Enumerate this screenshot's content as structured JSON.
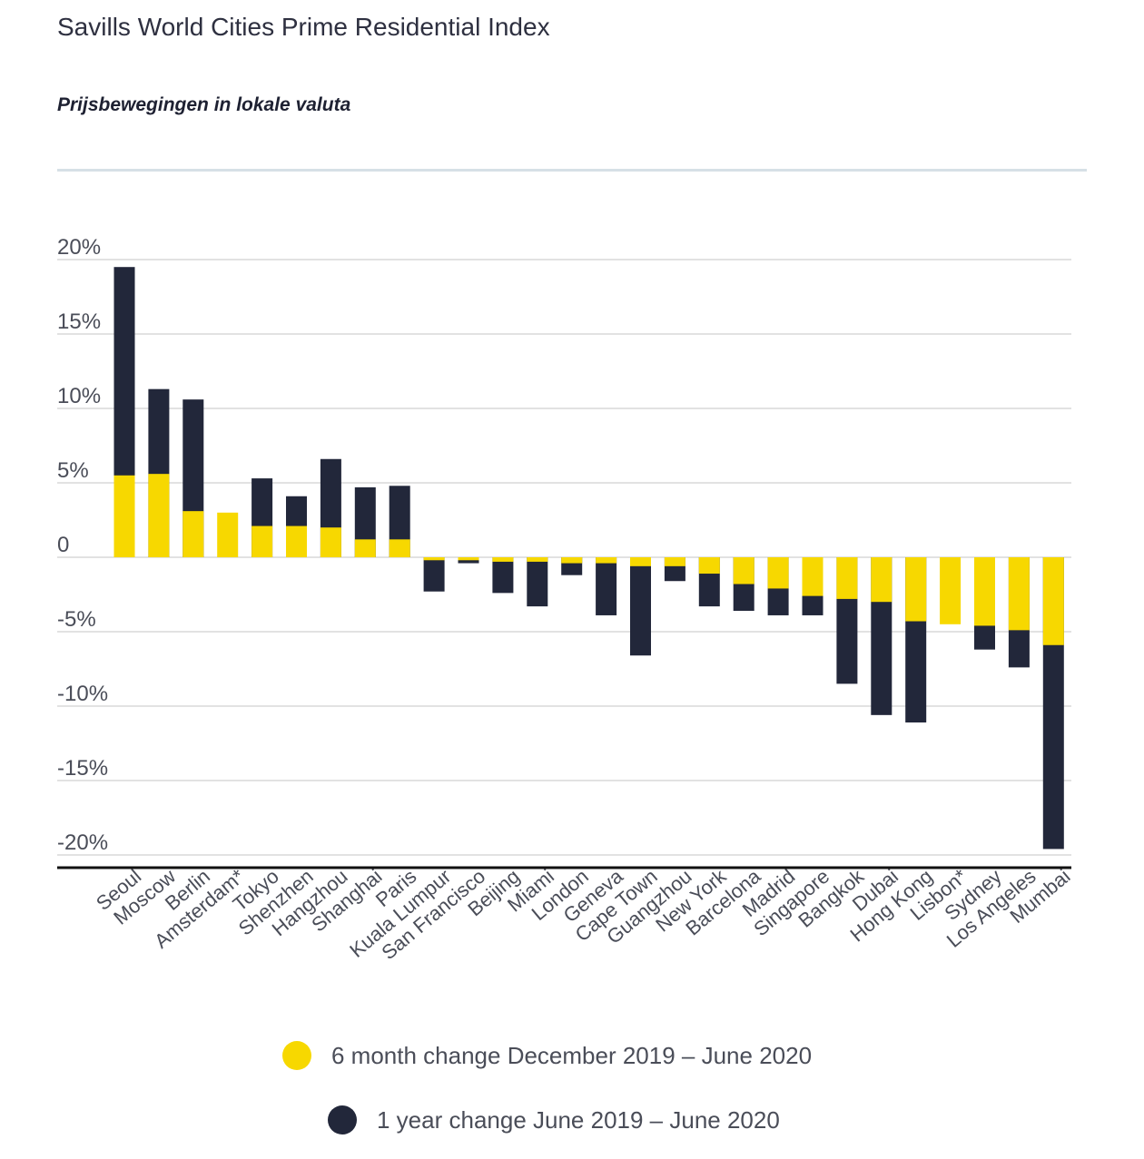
{
  "title": "Savills World Cities Prime Residential Index",
  "subtitle": "Prijsbewegingen in lokale valuta",
  "colors": {
    "six_month": "#f7d800",
    "one_year": "#22273a",
    "grid": "#d9d9d9",
    "axis": "#111111"
  },
  "chart_data": {
    "type": "bar",
    "ylim": [
      -20,
      20
    ],
    "yticks": [
      20,
      15,
      10,
      5,
      0,
      -5,
      -10,
      -15,
      -20
    ],
    "ytick_labels": [
      "20%",
      "15%",
      "10%",
      "5%",
      "0",
      "-5%",
      "-10%",
      "-15%",
      "-20%"
    ],
    "categories": [
      "Seoul",
      "Moscow",
      "Berlin",
      "Amsterdam*",
      "Tokyo",
      "Shenzhen",
      "Hangzhou",
      "Shanghai",
      "Paris",
      "Kuala Lumpur",
      "San Francisco",
      "Beijing",
      "Miami",
      "London",
      "Geneva",
      "Cape Town",
      "Guangzhou",
      "New York",
      "Barcelona",
      "Madrid",
      "Singapore",
      "Bangkok",
      "Dubai",
      "Hong Kong",
      "Lisbon*",
      "Sydney",
      "Los Angeles",
      "Mumbai"
    ],
    "series": [
      {
        "name": "6 month change December 2019 – June 2020",
        "values": [
          5.5,
          5.6,
          3.1,
          3.0,
          2.1,
          2.1,
          2.0,
          1.2,
          1.2,
          -0.2,
          -0.2,
          -0.3,
          -0.3,
          -0.4,
          -0.4,
          -0.6,
          -0.6,
          -1.1,
          -1.8,
          -2.1,
          -2.6,
          -2.8,
          -3.0,
          -4.3,
          -4.5,
          -4.6,
          -4.9,
          -5.9
        ]
      },
      {
        "name": "1 year change June 2019 – June 2020",
        "values": [
          19.5,
          11.3,
          10.6,
          null,
          5.3,
          4.1,
          6.6,
          4.7,
          4.8,
          -2.3,
          -0.4,
          -2.4,
          -3.3,
          -1.2,
          -3.9,
          -6.6,
          -1.6,
          -3.3,
          -3.6,
          -3.9,
          -3.9,
          -8.5,
          -10.6,
          -11.1,
          null,
          -6.2,
          -7.4,
          -19.6
        ]
      }
    ],
    "legend": "bottom-center"
  },
  "legend": {
    "six_month_label": "6 month change December 2019 – June 2020",
    "one_year_label": "1 year change June 2019 – June 2020"
  }
}
